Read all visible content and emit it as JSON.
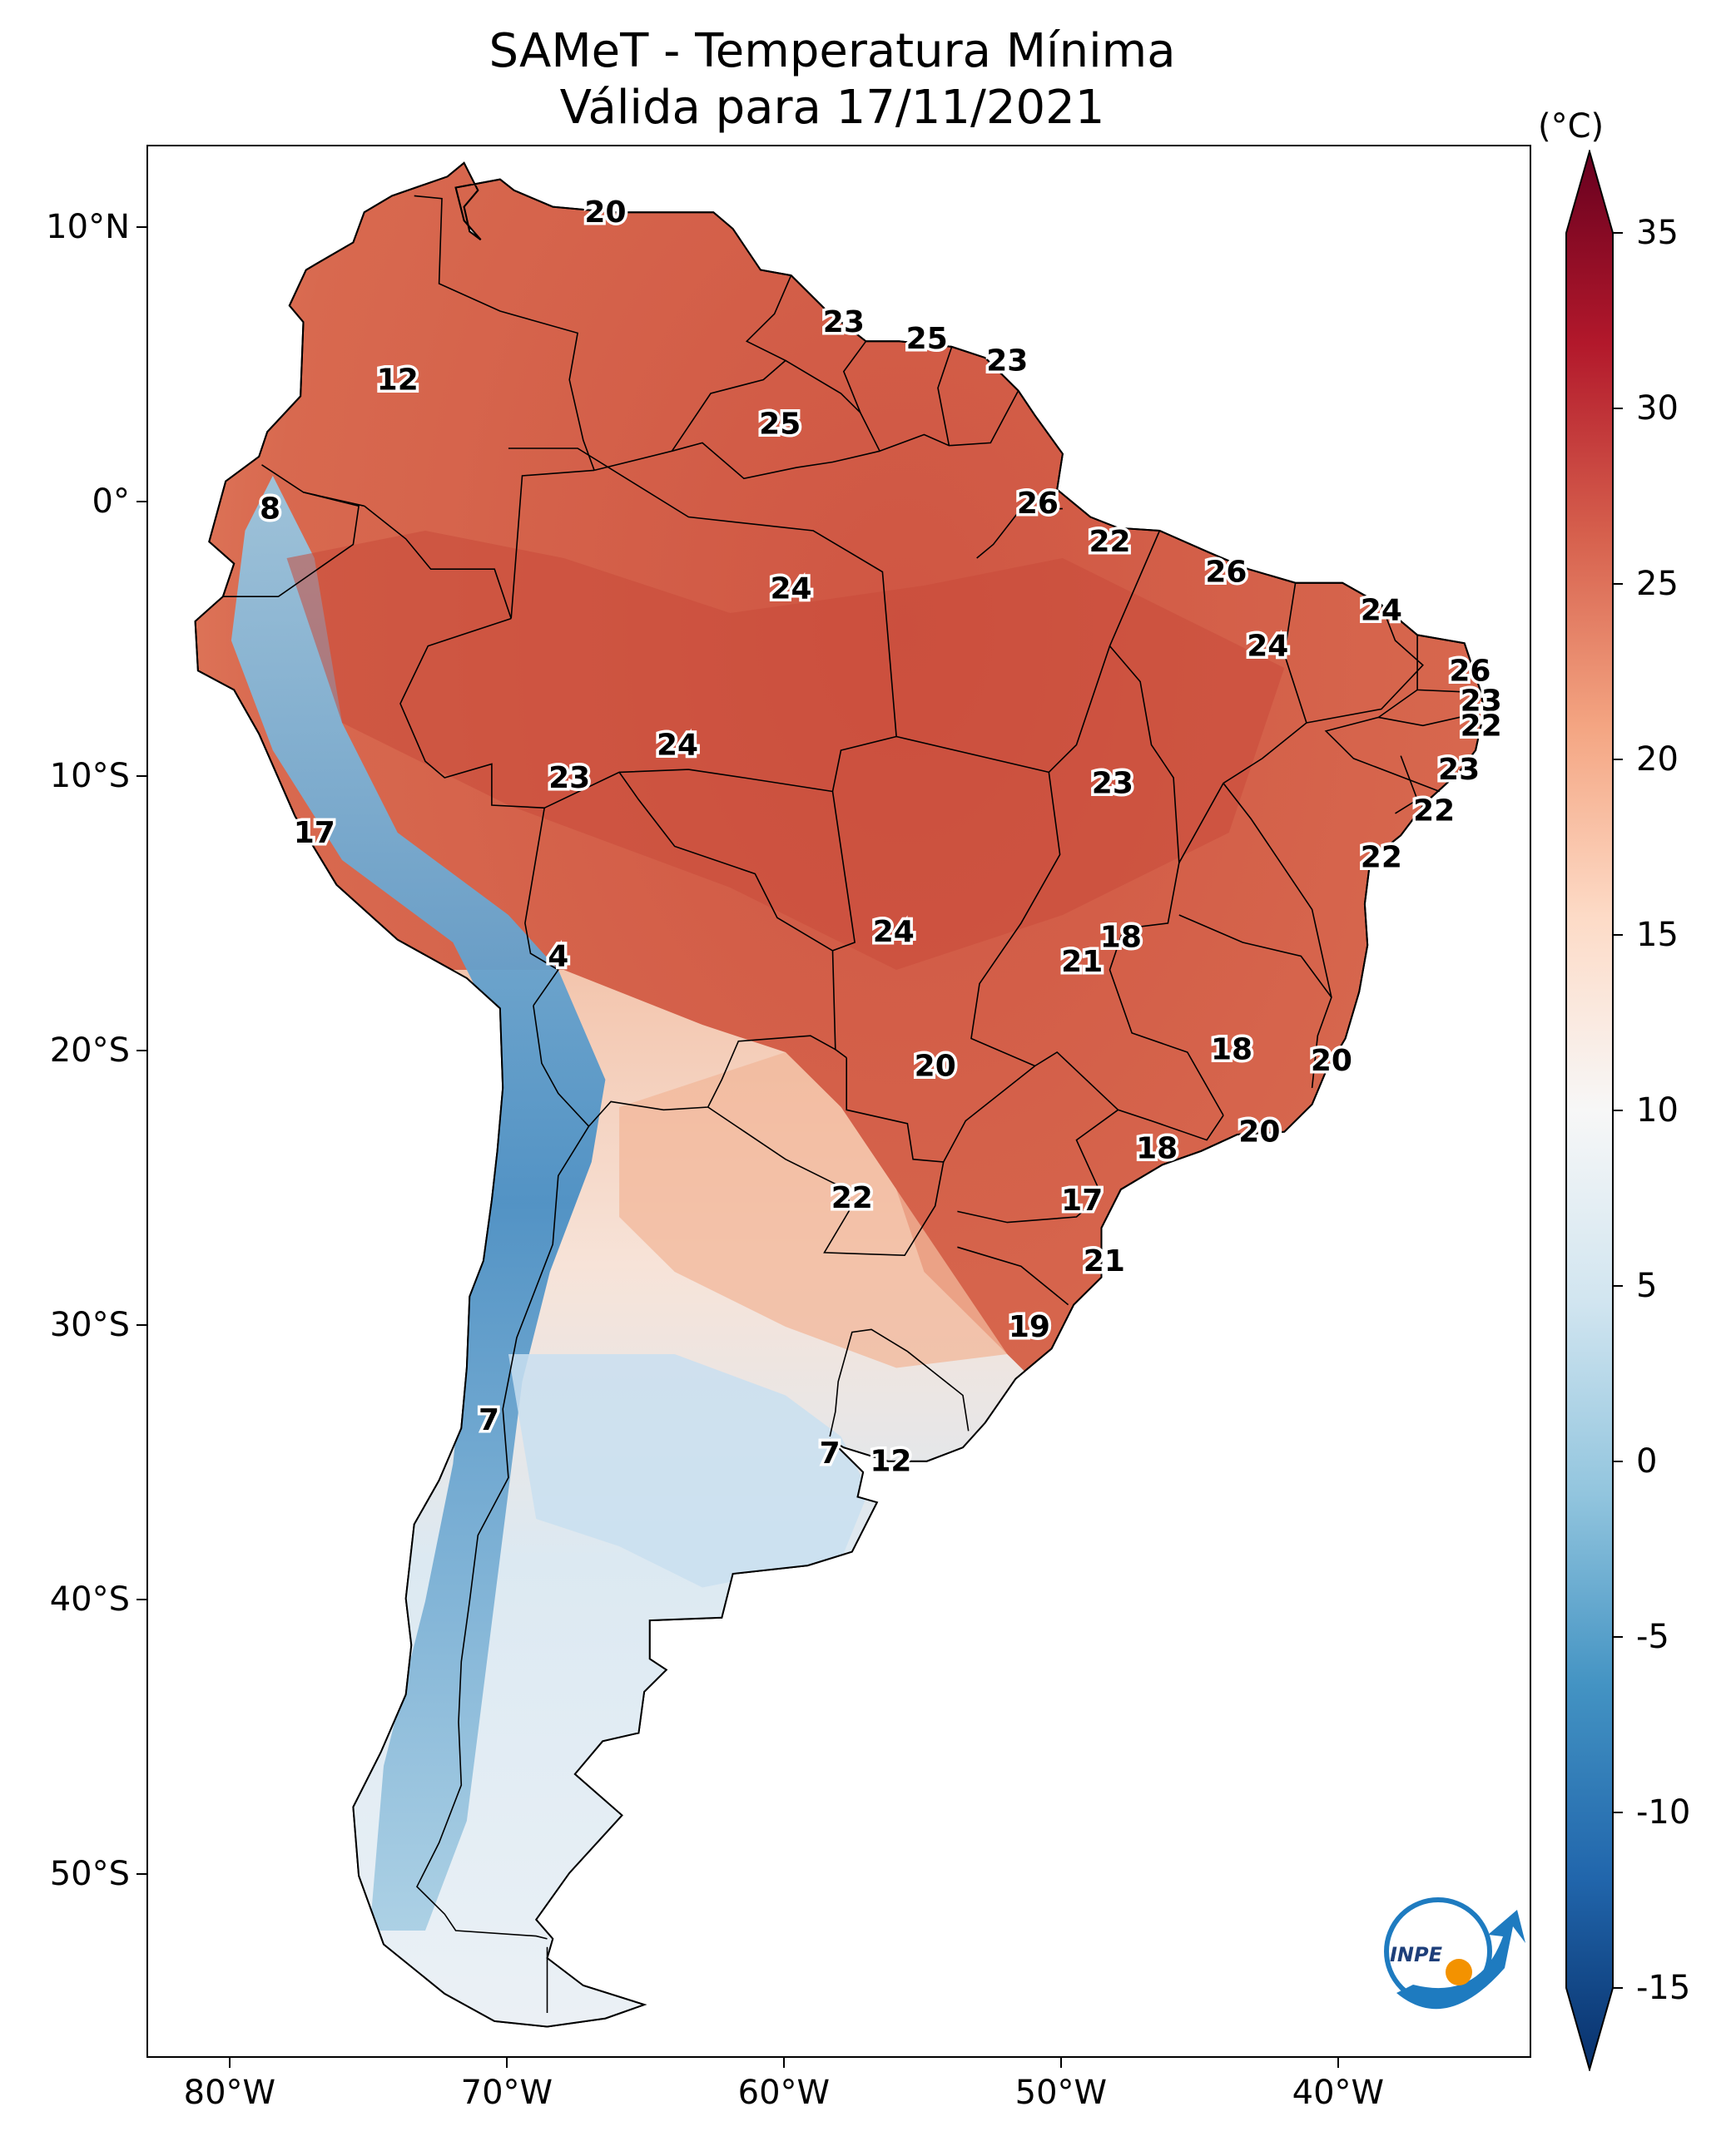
{
  "title": {
    "line1": "SAMeT - Temperatura Mínima",
    "line2": "Válida para 17/11/2021"
  },
  "colorbar": {
    "unit": "(°C)",
    "min": -15,
    "max": 35,
    "ticks": [
      "35",
      "30",
      "25",
      "20",
      "15",
      "10",
      "5",
      "0",
      "-5",
      "-10",
      "-15"
    ],
    "colors": [
      "#08306b",
      "#2166ac",
      "#4393c3",
      "#92c5de",
      "#d1e5f0",
      "#f7f7f7",
      "#fddbc7",
      "#f4a582",
      "#d6604d",
      "#b2182b",
      "#67001f"
    ]
  },
  "axes": {
    "lat_labels": [
      "10°N",
      "0°",
      "10°S",
      "20°S",
      "30°S",
      "40°S",
      "50°S"
    ],
    "lon_labels": [
      "80°W",
      "70°W",
      "60°W",
      "50°W",
      "40°W"
    ]
  },
  "map_labels": [
    {
      "text": "20",
      "lon": -66.5,
      "lat": 10.6
    },
    {
      "text": "12",
      "lon": -74.0,
      "lat": 4.5
    },
    {
      "text": "23",
      "lon": -57.9,
      "lat": 6.6
    },
    {
      "text": "25",
      "lon": -54.9,
      "lat": 6.0
    },
    {
      "text": "23",
      "lon": -52.0,
      "lat": 5.2
    },
    {
      "text": "25",
      "lon": -60.2,
      "lat": 2.9
    },
    {
      "text": "8",
      "lon": -78.6,
      "lat": -0.2
    },
    {
      "text": "26",
      "lon": -50.9,
      "lat": 0.0
    },
    {
      "text": "22",
      "lon": -48.3,
      "lat": -1.4
    },
    {
      "text": "24",
      "lon": -59.8,
      "lat": -3.1
    },
    {
      "text": "26",
      "lon": -44.1,
      "lat": -2.5
    },
    {
      "text": "24",
      "lon": -38.5,
      "lat": -3.9
    },
    {
      "text": "24",
      "lon": -42.6,
      "lat": -5.2
    },
    {
      "text": "26",
      "lon": -35.3,
      "lat": -6.1
    },
    {
      "text": "23",
      "lon": -34.9,
      "lat": -7.2
    },
    {
      "text": "22",
      "lon": -34.9,
      "lat": -8.1
    },
    {
      "text": "24",
      "lon": -63.9,
      "lat": -8.8
    },
    {
      "text": "23",
      "lon": -67.8,
      "lat": -10.0
    },
    {
      "text": "23",
      "lon": -48.2,
      "lat": -10.2
    },
    {
      "text": "23",
      "lon": -35.7,
      "lat": -9.7
    },
    {
      "text": "22",
      "lon": -36.6,
      "lat": -11.2
    },
    {
      "text": "17",
      "lon": -77.0,
      "lat": -12.0
    },
    {
      "text": "22",
      "lon": -38.5,
      "lat": -12.9
    },
    {
      "text": "24",
      "lon": -56.1,
      "lat": -15.6
    },
    {
      "text": "18",
      "lon": -47.9,
      "lat": -15.8
    },
    {
      "text": "21",
      "lon": -49.3,
      "lat": -16.7
    },
    {
      "text": "4",
      "lon": -68.2,
      "lat": -16.5
    },
    {
      "text": "20",
      "lon": -54.6,
      "lat": -20.5
    },
    {
      "text": "18",
      "lon": -43.9,
      "lat": -19.9
    },
    {
      "text": "20",
      "lon": -40.3,
      "lat": -20.3
    },
    {
      "text": "20",
      "lon": -42.9,
      "lat": -22.9
    },
    {
      "text": "18",
      "lon": -46.6,
      "lat": -23.5
    },
    {
      "text": "22",
      "lon": -57.6,
      "lat": -25.3
    },
    {
      "text": "17",
      "lon": -49.3,
      "lat": -25.4
    },
    {
      "text": "21",
      "lon": -48.5,
      "lat": -27.6
    },
    {
      "text": "19",
      "lon": -51.2,
      "lat": -30.0
    },
    {
      "text": "7",
      "lon": -70.7,
      "lat": -33.4
    },
    {
      "text": "7",
      "lon": -58.4,
      "lat": -34.6
    },
    {
      "text": "12",
      "lon": -56.2,
      "lat": -34.9
    }
  ],
  "logo": {
    "text": "INPE"
  }
}
